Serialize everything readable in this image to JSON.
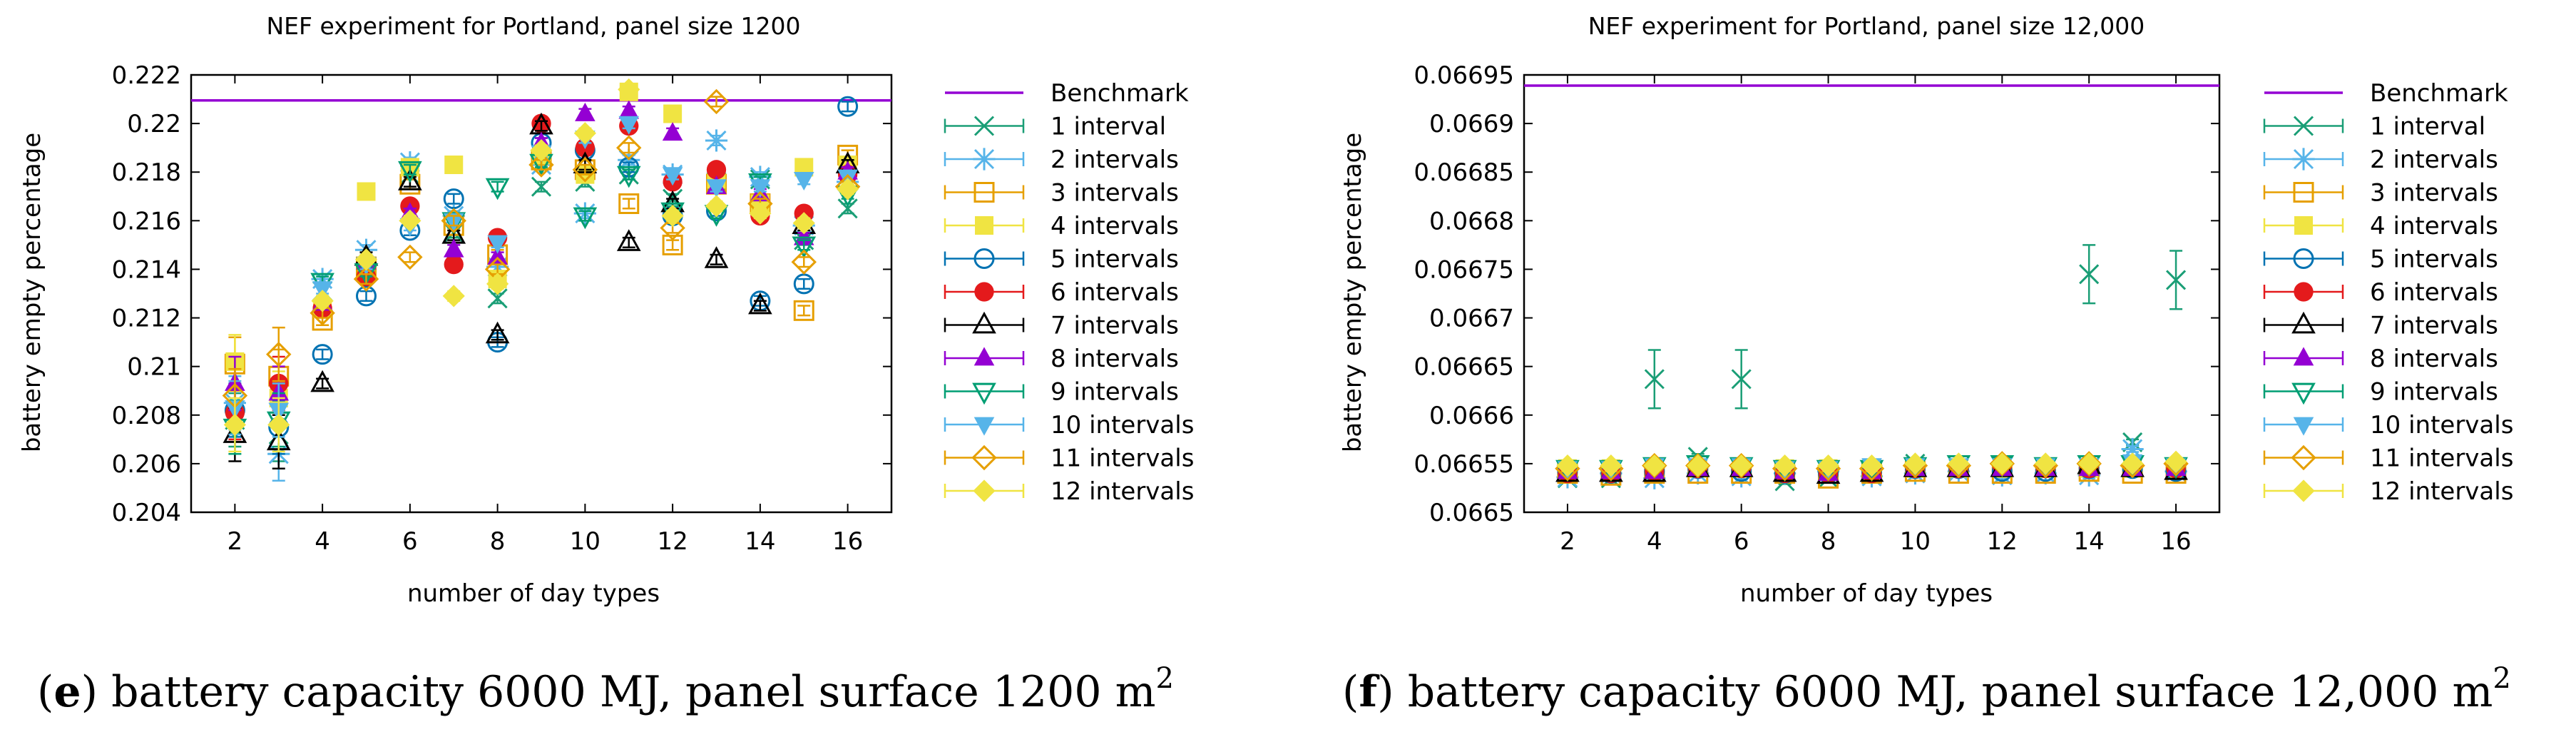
{
  "chart_data": [
    {
      "type": "scatter",
      "title": "NEF experiment for Portland, panel size 1200",
      "xlabel": "number of day types",
      "ylabel": "battery empty percentage",
      "xlim": [
        1,
        17
      ],
      "ylim": [
        0.204,
        0.222
      ],
      "xticks": [
        2,
        4,
        6,
        8,
        10,
        12,
        14,
        16
      ],
      "yticks": [
        0.204,
        0.206,
        0.208,
        0.21,
        0.212,
        0.214,
        0.216,
        0.218,
        0.22,
        0.222
      ],
      "ytick_labels": [
        "0.204",
        "0.206",
        "0.208",
        "0.21",
        "0.212",
        "0.214",
        "0.216",
        "0.218",
        "0.22",
        "0.222"
      ],
      "benchmark": {
        "name": "Benchmark",
        "value": 0.22095
      },
      "x": [
        2,
        3,
        4,
        5,
        6,
        7,
        8,
        9,
        10,
        11,
        12,
        13,
        14,
        15,
        16
      ],
      "series": [
        {
          "name": "1 interval",
          "values": [
            0.2078,
            0.2072,
            0.2131,
            0.214,
            0.2179,
            0.2155,
            0.2128,
            0.2174,
            0.2176,
            0.2179,
            0.2169,
            0.2176,
            0.2177,
            0.2152,
            0.2165
          ]
        },
        {
          "name": "2 intervals",
          "values": [
            0.2085,
            0.2064,
            0.2136,
            0.2148,
            0.2184,
            0.2162,
            0.2141,
            0.2183,
            0.2163,
            0.2185,
            0.2179,
            0.2193,
            0.2178,
            0.2158,
            0.2176
          ]
        },
        {
          "name": "3 intervals",
          "values": [
            0.2101,
            0.2096,
            0.2119,
            0.2141,
            0.2175,
            0.2158,
            0.2146,
            0.2185,
            0.2181,
            0.2167,
            0.215,
            0.2175,
            0.2167,
            0.2123,
            0.2187
          ]
        },
        {
          "name": "4 intervals",
          "values": [
            0.2102,
            0.2087,
            0.2124,
            0.2172,
            0.2182,
            0.2183,
            0.2136,
            0.2187,
            0.2179,
            0.2213,
            0.2204,
            0.2177,
            0.2167,
            0.2182,
            0.2183
          ]
        },
        {
          "name": "5 intervals",
          "values": [
            0.2082,
            0.2075,
            0.2105,
            0.2129,
            0.2156,
            0.2169,
            0.211,
            0.2192,
            0.2189,
            0.2182,
            0.2162,
            0.2164,
            0.2127,
            0.2134,
            0.2207
          ]
        },
        {
          "name": "6 intervals",
          "values": [
            0.2081,
            0.2093,
            0.2124,
            0.2137,
            0.2166,
            0.2142,
            0.2153,
            0.22,
            0.219,
            0.2199,
            0.2176,
            0.2181,
            0.2162,
            0.2163,
            0.2179
          ]
        },
        {
          "name": "7 intervals",
          "values": [
            0.2072,
            0.2069,
            0.2093,
            0.2145,
            0.2176,
            0.2154,
            0.2113,
            0.2199,
            0.2183,
            0.2151,
            0.2167,
            0.2144,
            0.2125,
            0.2158,
            0.2183
          ]
        },
        {
          "name": "8 intervals",
          "values": [
            0.2093,
            0.2089,
            0.2126,
            0.2143,
            0.2163,
            0.2148,
            0.2145,
            0.2192,
            0.2204,
            0.2205,
            0.2196,
            0.2174,
            0.2171,
            0.2153,
            0.218
          ]
        },
        {
          "name": "9 intervals",
          "values": [
            0.2075,
            0.2078,
            0.2135,
            0.2139,
            0.2181,
            0.216,
            0.2174,
            0.2184,
            0.2162,
            0.2179,
            0.2164,
            0.2163,
            0.2176,
            0.215,
            0.2171
          ]
        },
        {
          "name": "10 intervals",
          "values": [
            0.2083,
            0.2082,
            0.2132,
            0.2142,
            0.2158,
            0.216,
            0.2151,
            0.2188,
            0.2194,
            0.22,
            0.2179,
            0.2174,
            0.2174,
            0.2177,
            0.2178
          ]
        },
        {
          "name": "11 intervals",
          "values": [
            0.2088,
            0.2105,
            0.2122,
            0.2136,
            0.2145,
            0.216,
            0.214,
            0.2183,
            0.2181,
            0.219,
            0.2157,
            0.2209,
            0.2167,
            0.2143,
            0.2174
          ]
        },
        {
          "name": "12 intervals",
          "values": [
            0.2076,
            0.2076,
            0.2127,
            0.2144,
            0.216,
            0.2129,
            0.2134,
            0.2189,
            0.2196,
            0.2214,
            0.2162,
            0.2166,
            0.2163,
            0.2159,
            0.2173
          ]
        }
      ],
      "error_bars": {
        "early_halfwidth": 0.0011,
        "late_halfwidth": 0.0002
      }
    },
    {
      "type": "scatter",
      "title": "NEF experiment for Portland, panel size 12,000",
      "xlabel": "number of day types",
      "ylabel": "battery empty percentage",
      "xlim": [
        1,
        17
      ],
      "ylim": [
        0.0665,
        0.06695
      ],
      "xticks": [
        2,
        4,
        6,
        8,
        10,
        12,
        14,
        16
      ],
      "yticks": [
        0.0665,
        0.06655,
        0.0666,
        0.06665,
        0.0667,
        0.06675,
        0.0668,
        0.06685,
        0.0669,
        0.06695
      ],
      "ytick_labels": [
        "0.0665",
        "0.06655",
        "0.0666",
        "0.06665",
        "0.0667",
        "0.06675",
        "0.0668",
        "0.06685",
        "0.0669",
        "0.06695"
      ],
      "benchmark": {
        "name": "Benchmark",
        "value": 0.066939
      },
      "x": [
        2,
        3,
        4,
        5,
        6,
        7,
        8,
        9,
        10,
        11,
        12,
        13,
        14,
        15,
        16
      ],
      "series": [
        {
          "name": "1 interval",
          "values": [
            0.066535,
            0.066535,
            0.066637,
            0.066557,
            0.066637,
            0.066532,
            0.066535,
            0.066537,
            0.06655,
            0.066545,
            0.066548,
            0.06654,
            0.066745,
            0.066572,
            0.066739
          ]
        },
        {
          "name": "2 intervals",
          "values": [
            0.066536,
            0.06654,
            0.066535,
            0.06654,
            0.066537,
            0.06654,
            0.066542,
            0.066537,
            0.06654,
            0.066542,
            0.066538,
            0.06654,
            0.066538,
            0.066565,
            0.066542
          ]
        },
        {
          "name": "3 intervals",
          "values": [
            0.06654,
            0.066538,
            0.06654,
            0.06654,
            0.06654,
            0.06654,
            0.066535,
            0.06654,
            0.066542,
            0.06654,
            0.06654,
            0.06654,
            0.066542,
            0.06654,
            0.06654
          ]
        },
        {
          "name": "4 intervals",
          "values": [
            0.066545,
            0.066545,
            0.066545,
            0.066545,
            0.066545,
            0.066545,
            0.066545,
            0.066545,
            0.066545,
            0.066545,
            0.066545,
            0.066545,
            0.066545,
            0.066545,
            0.066545
          ]
        },
        {
          "name": "5 intervals",
          "values": [
            0.066542,
            0.06654,
            0.066542,
            0.066545,
            0.066542,
            0.06654,
            0.06654,
            0.066542,
            0.066545,
            0.066545,
            0.066542,
            0.066542,
            0.066545,
            0.066545,
            0.066542
          ]
        },
        {
          "name": "6 intervals",
          "values": [
            0.06654,
            0.06654,
            0.066542,
            0.066545,
            0.066545,
            0.06654,
            0.06654,
            0.06654,
            0.066545,
            0.066545,
            0.066548,
            0.066545,
            0.066545,
            0.066548,
            0.066545
          ]
        },
        {
          "name": "7 intervals",
          "values": [
            0.06654,
            0.06654,
            0.06654,
            0.066545,
            0.066545,
            0.06654,
            0.066538,
            0.06654,
            0.066545,
            0.066545,
            0.066545,
            0.066545,
            0.066548,
            0.066545,
            0.066542
          ]
        },
        {
          "name": "8 intervals",
          "values": [
            0.066542,
            0.066542,
            0.066542,
            0.066545,
            0.066545,
            0.066542,
            0.06654,
            0.066542,
            0.066545,
            0.066545,
            0.066545,
            0.066545,
            0.066545,
            0.066545,
            0.066545
          ]
        },
        {
          "name": "9 intervals",
          "values": [
            0.066545,
            0.066545,
            0.066548,
            0.06655,
            0.066548,
            0.066545,
            0.066545,
            0.066545,
            0.066548,
            0.06655,
            0.06655,
            0.066548,
            0.06655,
            0.06655,
            0.066548
          ]
        },
        {
          "name": "10 intervals",
          "values": [
            0.066545,
            0.066545,
            0.066548,
            0.066548,
            0.066548,
            0.066545,
            0.066545,
            0.066548,
            0.066548,
            0.066548,
            0.066548,
            0.066548,
            0.066548,
            0.066552,
            0.066548
          ]
        },
        {
          "name": "11 intervals",
          "values": [
            0.066545,
            0.066545,
            0.066548,
            0.066548,
            0.066548,
            0.066545,
            0.066545,
            0.066545,
            0.066548,
            0.066548,
            0.06655,
            0.066548,
            0.06655,
            0.066548,
            0.06655
          ]
        },
        {
          "name": "12 intervals",
          "values": [
            0.066548,
            0.066548,
            0.066548,
            0.066548,
            0.066548,
            0.066548,
            0.066548,
            0.066548,
            0.06655,
            0.06655,
            0.06655,
            0.06655,
            0.06655,
            0.06655,
            0.066552
          ]
        }
      ],
      "error_bars": {
        "halfwidth": 3e-06,
        "one_interval_peak_halfwidth": 3e-05
      }
    }
  ],
  "series_styles": [
    {
      "color": "#1a9e76",
      "symbol": "x"
    },
    {
      "color": "#56b4e9",
      "symbol": "asterisk"
    },
    {
      "color": "#e69f00",
      "symbol": "square-open"
    },
    {
      "color": "#f0e442",
      "symbol": "square-filled"
    },
    {
      "color": "#0072b2",
      "symbol": "circle-open"
    },
    {
      "color": "#e41a1c",
      "symbol": "circle-filled"
    },
    {
      "color": "#000000",
      "symbol": "triangle-up-open"
    },
    {
      "color": "#9400d3",
      "symbol": "triangle-up-filled"
    },
    {
      "color": "#009e73",
      "symbol": "triangle-down-open"
    },
    {
      "color": "#56b4e9",
      "symbol": "triangle-down-filled"
    },
    {
      "color": "#e69f00",
      "symbol": "diamond-open"
    },
    {
      "color": "#f0e442",
      "symbol": "diamond-filled"
    }
  ],
  "benchmark_color": "#9400d3",
  "captions": [
    {
      "label": "e",
      "text": ") battery capacity 6000 MJ, panel surface 1200 m",
      "sup": "2"
    },
    {
      "label": "f",
      "text": ") battery capacity 6000 MJ, panel surface 12,000 m",
      "sup": "2"
    }
  ]
}
